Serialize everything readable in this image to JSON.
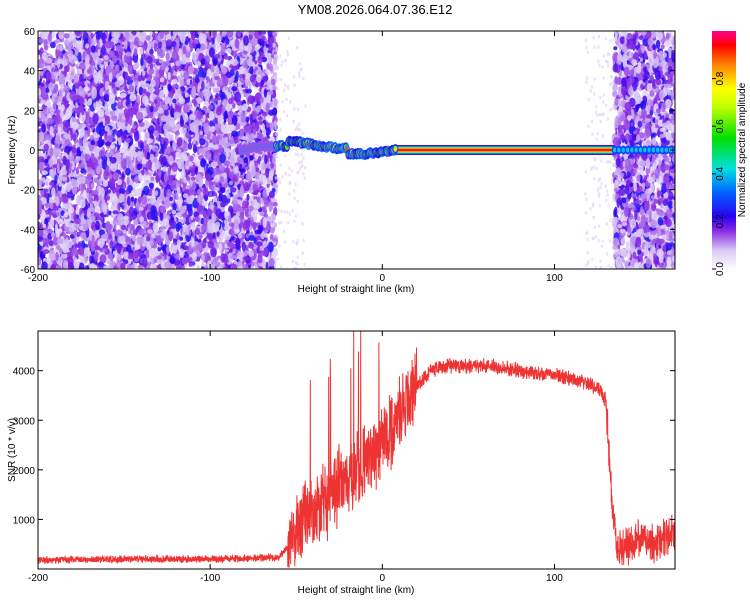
{
  "title": "YM08.2026.064.07.36.E12",
  "chart_data": [
    {
      "type": "heatmap",
      "xlabel": "Height of straight line (km)",
      "ylabel": "Frequency (Hz)",
      "xlim": [
        -200,
        170
      ],
      "ylim": [
        -60,
        60
      ],
      "xticks": [
        -200,
        -100,
        0,
        100
      ],
      "yticks": [
        -60,
        -40,
        -20,
        0,
        20,
        40,
        60
      ],
      "colorbar": {
        "label": "Normalized spectral amplitude",
        "range": [
          0,
          1
        ],
        "ticks": [
          0.0,
          0.2,
          0.4,
          0.6,
          0.8
        ],
        "tick_labels": [
          "0.0",
          "0.2",
          "0.4",
          "0.6",
          "0.8"
        ]
      },
      "regions": [
        {
          "x_from": -200,
          "x_to": -62,
          "content": "broadband noise"
        },
        {
          "x_from": -82,
          "x_to": 10,
          "content": "wandering carrier near 0 Hz"
        },
        {
          "x_from": 5,
          "x_to": 135,
          "content": "stable carrier at 0 Hz, amplitude ~1.0"
        },
        {
          "x_from": 135,
          "x_to": 170,
          "content": "broadband noise"
        }
      ]
    },
    {
      "type": "line",
      "xlabel": "Height of straight line (km)",
      "ylabel": "SNR (10 * v/v)",
      "xlim": [
        -200,
        170
      ],
      "ylim": [
        0,
        4800
      ],
      "xticks": [
        -200,
        -100,
        0,
        100
      ],
      "yticks": [
        1000,
        2000,
        3000,
        4000
      ],
      "color": "#ee3333",
      "series": [
        {
          "x": [
            -200,
            -150,
            -100,
            -60,
            -52,
            -45,
            -38,
            -30,
            -22,
            -15,
            -8,
            0,
            10,
            20,
            30,
            40,
            60,
            80,
            100,
            115,
            125,
            130,
            133,
            136,
            140,
            150,
            160,
            170
          ],
          "y": [
            180,
            200,
            200,
            230,
            600,
            1000,
            1100,
            1500,
            1800,
            2000,
            2200,
            2500,
            3100,
            3700,
            4050,
            4100,
            4100,
            4000,
            3900,
            3800,
            3650,
            3400,
            1500,
            500,
            400,
            600,
            500,
            800
          ]
        }
      ]
    }
  ]
}
